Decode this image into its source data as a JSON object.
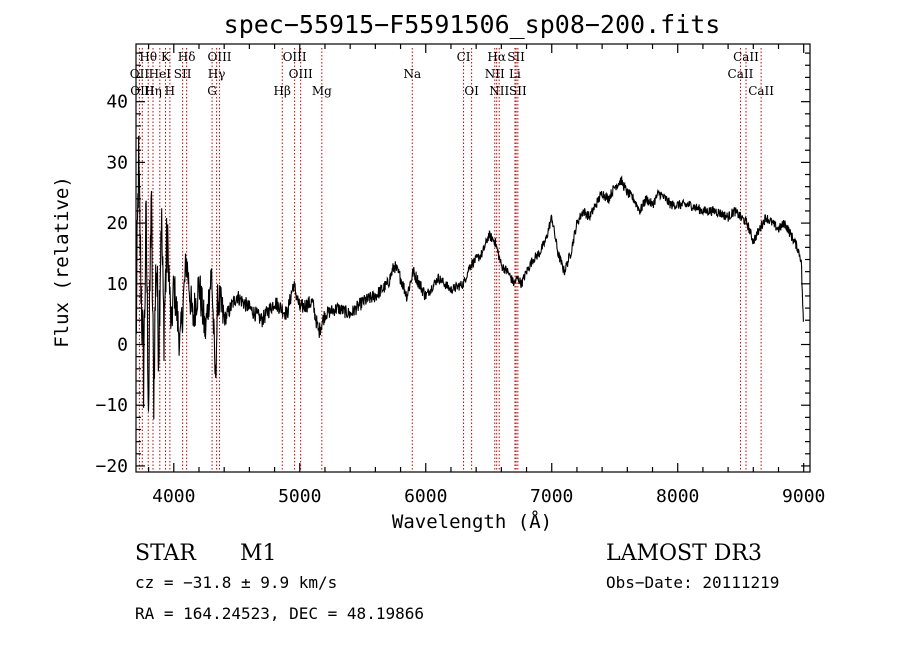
{
  "chart_data": {
    "type": "line",
    "title": "spec−55915−F5591506_sp08−200.fits",
    "xlabel": "Wavelength (Å)",
    "ylabel": "Flux (relative)",
    "xlim": [
      3700,
      9050
    ],
    "ylim": [
      -21,
      49.5
    ],
    "xticks": [
      4000,
      5000,
      6000,
      7000,
      8000,
      9000
    ],
    "xtick_labels": [
      "4000",
      "5000",
      "6000",
      "7000",
      "8000",
      "9000"
    ],
    "yticks": [
      -20,
      -10,
      0,
      10,
      20,
      30,
      40
    ],
    "ytick_labels": [
      "−20",
      "−10",
      "0",
      "10",
      "20",
      "30",
      "40"
    ],
    "series": [
      {
        "name": "flux",
        "x": [
          3700,
          3720,
          3740,
          3760,
          3780,
          3800,
          3820,
          3840,
          3860,
          3880,
          3900,
          3920,
          3950,
          3980,
          4000,
          4050,
          4100,
          4150,
          4200,
          4250,
          4300,
          4330,
          4350,
          4400,
          4500,
          4600,
          4700,
          4800,
          4900,
          4950,
          5000,
          5100,
          5150,
          5200,
          5300,
          5400,
          5500,
          5600,
          5700,
          5750,
          5800,
          5850,
          5900,
          6000,
          6100,
          6200,
          6300,
          6350,
          6400,
          6450,
          6500,
          6550,
          6600,
          6650,
          6700,
          6730,
          6760,
          6800,
          6850,
          6900,
          6950,
          7000,
          7050,
          7100,
          7150,
          7200,
          7250,
          7300,
          7350,
          7400,
          7450,
          7500,
          7550,
          7600,
          7650,
          7700,
          7750,
          7800,
          7850,
          7900,
          7950,
          8000,
          8100,
          8200,
          8300,
          8400,
          8450,
          8500,
          8550,
          8600,
          8650,
          8700,
          8750,
          8800,
          8850,
          8900,
          8950,
          8980,
          9000
        ],
        "values": [
          0,
          30,
          10,
          -5,
          20,
          -10,
          25,
          -8,
          15,
          0,
          22,
          3,
          18,
          2,
          10,
          0,
          14,
          4,
          10,
          2,
          12,
          -6,
          8,
          4,
          8,
          6,
          4,
          7,
          5,
          10,
          6,
          7,
          2,
          5,
          6,
          5,
          7,
          8,
          10,
          13,
          11,
          8,
          12,
          8,
          11,
          9,
          10,
          13,
          14,
          15,
          18,
          17,
          13,
          12,
          10,
          11,
          10,
          12,
          14,
          15,
          17,
          21,
          15,
          12,
          15,
          20,
          22,
          21,
          23,
          25,
          24,
          26,
          27,
          25,
          24,
          22,
          24,
          23,
          25,
          24,
          23,
          23,
          23,
          22,
          22,
          21,
          22,
          21,
          20,
          17,
          19,
          21,
          20,
          19,
          20,
          18,
          16,
          14,
          2
        ]
      }
    ],
    "line_markers": [
      {
        "label": "Hθ",
        "x": 3797,
        "row": 1
      },
      {
        "label": "K",
        "x": 3934,
        "row": 1
      },
      {
        "label": "Hδ",
        "x": 4102,
        "row": 1
      },
      {
        "label": "OIII",
        "x": 4363,
        "row": 1
      },
      {
        "label": "OIII",
        "x": 4959,
        "row": 1
      },
      {
        "label": "CI",
        "x": 6300,
        "row": 1
      },
      {
        "label": "Hα",
        "x": 6563,
        "row": 1
      },
      {
        "label": "SII",
        "x": 6717,
        "row": 1
      },
      {
        "label": "CaII",
        "x": 8542,
        "row": 1
      },
      {
        "label": "OII",
        "x": 3727,
        "row": 2
      },
      {
        "label": "HeI",
        "x": 3889,
        "row": 2
      },
      {
        "label": "SII",
        "x": 4070,
        "row": 2
      },
      {
        "label": "Hγ",
        "x": 4340,
        "row": 2
      },
      {
        "label": "OIII",
        "x": 5007,
        "row": 2
      },
      {
        "label": "Na",
        "x": 5893,
        "row": 2
      },
      {
        "label": "NII",
        "x": 6548,
        "row": 2
      },
      {
        "label": "Li",
        "x": 6708,
        "row": 2
      },
      {
        "label": "CaII",
        "x": 8498,
        "row": 2
      },
      {
        "label": "OIII",
        "x": 3750,
        "row": 3
      },
      {
        "label": "Hη",
        "x": 3835,
        "row": 3
      },
      {
        "label": "H",
        "x": 3969,
        "row": 3
      },
      {
        "label": "G",
        "x": 4304,
        "row": 3
      },
      {
        "label": "Hβ",
        "x": 4861,
        "row": 3
      },
      {
        "label": "Mg",
        "x": 5175,
        "row": 3
      },
      {
        "label": "OI",
        "x": 6364,
        "row": 3
      },
      {
        "label": "NII",
        "x": 6583,
        "row": 3
      },
      {
        "label": "SII",
        "x": 6731,
        "row": 3
      },
      {
        "label": "CaII",
        "x": 8662,
        "row": 3
      }
    ]
  },
  "info": {
    "object_class": "STAR",
    "subclass": "M1",
    "survey": "LAMOST DR3",
    "redshift_line": "cz = −31.8 ± 9.9 km/s",
    "obs_date_line": "Obs−Date: 20111219",
    "coords_line": "RA = 164.24523, DEC =  48.19866"
  }
}
